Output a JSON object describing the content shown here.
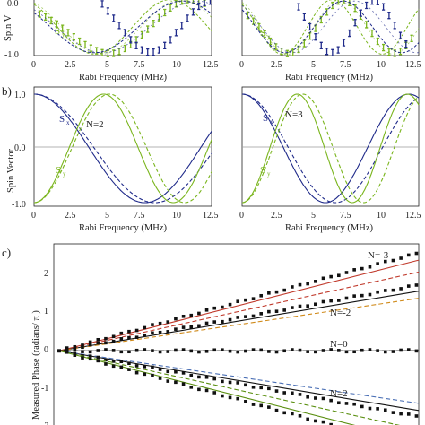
{
  "colors": {
    "blue": "#1f2a8a",
    "green": "#7ab51d",
    "red": "#c0392b",
    "orange": "#d08a1a",
    "ltblue": "#4a6fb5",
    "dkgreen": "#5a8f10",
    "black": "#111111"
  },
  "labels": {
    "panel_b": "b)",
    "panel_c": "c)",
    "ylabel_top": "Spin V",
    "ylabel_b": "Spin Vector",
    "ylabel_c": "Measured Phase (radians/ π )",
    "xlabel": "Rabi Frequency (MHz)",
    "sx": "S",
    "sx_sub": "x",
    "sy": "S",
    "sy_sub": "y",
    "n2": "N=2",
    "n3": "N=3",
    "c_nm3": "N=-3",
    "c_nm2": "N=-2",
    "c_n0": "N=0",
    "c_n2": "N=2"
  },
  "chart_data": [
    {
      "type": "scatter",
      "panel": "a-left",
      "ylabel": "Spin V",
      "xlabel": "Rabi Frequency (MHz)",
      "xlim": [
        0,
        12.5
      ],
      "ylim": [
        -1.0,
        1.0
      ],
      "xticks": [
        "0",
        "2.5",
        "5",
        "7.5",
        "10",
        "12.5"
      ],
      "yticks": [
        "0.0",
        "-1.0"
      ],
      "series": [
        {
          "name": "Sy",
          "style": "points+dashed+solid",
          "color": "green",
          "freq_harmonic": 1,
          "shift": 0,
          "x": [
            0.4,
            0.8,
            1.2,
            1.6,
            2.0,
            2.4,
            2.8,
            3.2,
            3.6,
            4.0,
            4.4,
            4.8,
            5.2,
            5.6,
            6.0,
            6.4,
            6.8,
            7.2,
            7.6,
            8.0,
            8.4,
            8.8,
            9.2,
            9.6,
            10.0,
            10.4,
            10.8,
            11.2,
            11.6,
            12.0
          ],
          "y": [
            0.45,
            0.35,
            0.22,
            0.1,
            -0.05,
            -0.2,
            -0.35,
            -0.5,
            -0.62,
            -0.74,
            -0.83,
            -0.9,
            -0.93,
            -0.92,
            -0.85,
            -0.75,
            -0.62,
            -0.45,
            -0.28,
            -0.08,
            0.12,
            0.32,
            0.5,
            0.66,
            0.8,
            0.9,
            0.95,
            0.95,
            0.9,
            0.82
          ]
        },
        {
          "name": "Sx",
          "style": "points+dashed+solid",
          "color": "blue",
          "freq_harmonic": 1,
          "shift": 1.2,
          "x": [
            4.8,
            5.2,
            5.6,
            6.0,
            6.4,
            6.8,
            7.2,
            7.6,
            8.0,
            8.4,
            8.8,
            9.2,
            9.6,
            10.0,
            10.4,
            10.8,
            11.2,
            11.6,
            12.0,
            12.4
          ],
          "y": [
            0.8,
            0.55,
            0.3,
            0.05,
            -0.2,
            -0.45,
            -0.65,
            -0.8,
            -0.88,
            -0.88,
            -0.8,
            -0.65,
            -0.45,
            -0.2,
            0.05,
            0.3,
            0.52,
            0.72,
            0.85,
            0.9
          ]
        }
      ]
    },
    {
      "type": "scatter",
      "panel": "a-right",
      "xlabel": "Rabi Frequency (MHz)",
      "xlim": [
        0,
        12.5
      ],
      "ylim": [
        -1.0,
        1.0
      ],
      "xticks": [
        "0",
        "2.5",
        "5",
        "7.5",
        "10",
        "12.5"
      ],
      "series": [
        {
          "name": "Sy",
          "style": "points+dashed",
          "color": "green",
          "freq_harmonic": 1.5,
          "shift": 0,
          "x": [
            0.4,
            0.8,
            1.2,
            1.6,
            2.0,
            2.4,
            2.8,
            3.2,
            3.6,
            4.0,
            4.4,
            4.8,
            5.2,
            5.6,
            6.0,
            6.4,
            6.8,
            7.2,
            7.6,
            8.0,
            8.4,
            8.8,
            9.2,
            9.6,
            10.0,
            10.4,
            10.8,
            11.2,
            11.6,
            12.0
          ],
          "y": [
            0.4,
            0.2,
            0.0,
            -0.25,
            -0.5,
            -0.7,
            -0.85,
            -0.93,
            -0.9,
            -0.78,
            -0.58,
            -0.32,
            -0.05,
            0.25,
            0.52,
            0.75,
            0.9,
            0.95,
            0.85,
            0.65,
            0.38,
            0.08,
            -0.22,
            -0.5,
            -0.72,
            -0.88,
            -0.92,
            -0.85,
            -0.65,
            -0.4
          ]
        },
        {
          "name": "Sx",
          "style": "points+dashed",
          "color": "blue",
          "freq_harmonic": 1.5,
          "shift": 1.0,
          "x": [
            4.0,
            4.4,
            4.8,
            5.2,
            5.6,
            6.0,
            6.4,
            6.8,
            7.2,
            7.6,
            8.0,
            8.4,
            8.8,
            9.2,
            9.6,
            10.0,
            10.4,
            10.8,
            11.2,
            11.6
          ],
          "y": [
            0.7,
            0.35,
            0.0,
            -0.35,
            -0.65,
            -0.85,
            -0.9,
            -0.8,
            -0.55,
            -0.22,
            0.15,
            0.48,
            0.75,
            0.9,
            0.88,
            0.7,
            0.4,
            0.05,
            -0.3,
            -0.6
          ]
        }
      ]
    },
    {
      "type": "line",
      "panel": "b-left",
      "ylabel": "Spin Vector",
      "xlabel": "Rabi Frequency (MHz)",
      "xlim": [
        0,
        12.5
      ],
      "ylim": [
        -1.05,
        1.15
      ],
      "xticks": [
        "0",
        "2.5",
        "5",
        "7.5",
        "10",
        "12.5"
      ],
      "yticks": [
        "1.0",
        "0.0",
        "-1.0"
      ],
      "series": [
        {
          "name": "Sx",
          "color": "blue",
          "kind": "cos",
          "half_period": 7.8,
          "alt_half_period": 8.5,
          "phase": 0
        },
        {
          "name": "Sy",
          "color": "green",
          "kind": "sin",
          "half_period": 4.9,
          "alt_half_period": 5.3,
          "phase": 0
        }
      ],
      "annotations": [
        "N=2"
      ]
    },
    {
      "type": "line",
      "panel": "b-right",
      "xlabel": "Rabi Frequency (MHz)",
      "xlim": [
        0,
        12.5
      ],
      "ylim": [
        -1.05,
        1.15
      ],
      "xticks": [
        "0",
        "2.5",
        "5",
        "7.5",
        "10",
        "12.5"
      ],
      "series": [
        {
          "name": "Sx",
          "color": "blue",
          "kind": "cos",
          "half_period": 5.9,
          "alt_half_period": 6.6,
          "phase": 0
        },
        {
          "name": "Sy",
          "color": "green",
          "kind": "sin",
          "half_period": 3.9,
          "alt_half_period": 4.3,
          "phase": 0
        }
      ],
      "annotations": [
        "N=3"
      ]
    },
    {
      "type": "scatter",
      "panel": "c",
      "ylabel": "Measured Phase (radians/ π )",
      "xlim": [
        0,
        12.5
      ],
      "ylim": [
        -2.6,
        2.8
      ],
      "yticks": [
        "2",
        "1",
        "0",
        "-1",
        "-2"
      ],
      "series": [
        {
          "name": "N=-3",
          "slope": 0.205,
          "fit_solid": 0.19,
          "fit_dashed": 0.165,
          "solid_color": "red",
          "dashed_color": "red"
        },
        {
          "name": "N=-2",
          "slope": 0.138,
          "fit_solid": 0.125,
          "fit_dashed": 0.11,
          "solid_color": "black",
          "dashed_color": "orange"
        },
        {
          "name": "N=0",
          "slope": 0.0,
          "fit_solid": 0.0,
          "fit_dashed": 0.0,
          "solid_color": "black",
          "dashed_color": "black"
        },
        {
          "name": "N=2",
          "slope": -0.138,
          "fit_solid": -0.125,
          "fit_dashed": -0.11,
          "solid_color": "black",
          "dashed_color": "ltblue"
        },
        {
          "name": "N=3",
          "slope": -0.205,
          "fit_solid": -0.19,
          "fit_dashed": -0.165,
          "solid_color": "dkgreen",
          "dashed_color": "dkgreen"
        }
      ]
    }
  ]
}
